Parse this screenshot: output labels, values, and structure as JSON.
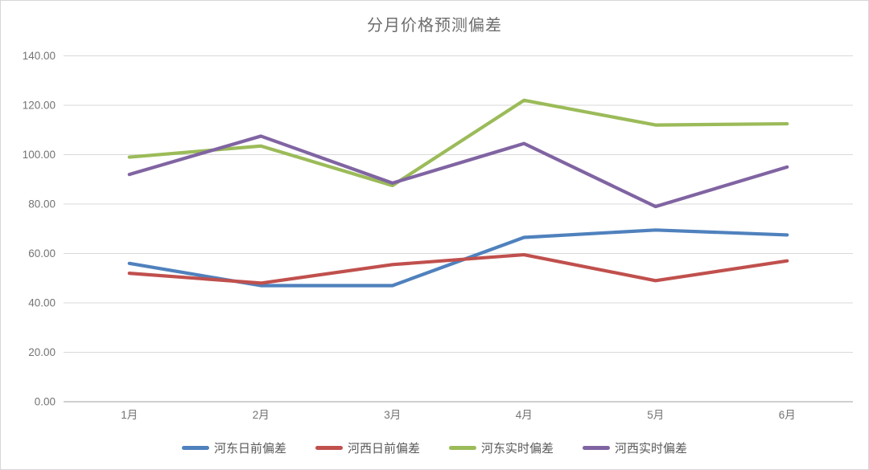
{
  "chart_data": {
    "type": "line",
    "title": "分月价格预测偏差",
    "categories": [
      "1月",
      "2月",
      "3月",
      "4月",
      "5月",
      "6月"
    ],
    "series": [
      {
        "name": "河东日前偏差",
        "color": "#4F81BD",
        "values": [
          56,
          47,
          47,
          66.5,
          69.5,
          67.5
        ]
      },
      {
        "name": "河西日前偏差",
        "color": "#C0504D",
        "values": [
          52,
          48,
          55.5,
          59.5,
          49,
          57
        ]
      },
      {
        "name": "河东实时偏差",
        "color": "#9BBB59",
        "values": [
          99,
          103.5,
          87.5,
          122,
          112,
          112.5
        ]
      },
      {
        "name": "河西实时偏差",
        "color": "#8064A2",
        "values": [
          92,
          107.5,
          88.5,
          104.5,
          79,
          95
        ]
      }
    ],
    "xlabel": "",
    "ylabel": "",
    "ylim": [
      0,
      140
    ],
    "ytick_step": 20,
    "ytick_labels": [
      "0.00",
      "20.00",
      "40.00",
      "60.00",
      "80.00",
      "100.00",
      "120.00",
      "140.00"
    ],
    "grid": true,
    "legend_position": "bottom",
    "colors": {
      "gridline": "#d9d9d9",
      "axis_line": "#bfbfbf",
      "tick_text": "#737373",
      "title_text": "#6d6d6d",
      "background": "#ffffff",
      "frame_border": "#d6d6d6"
    }
  }
}
